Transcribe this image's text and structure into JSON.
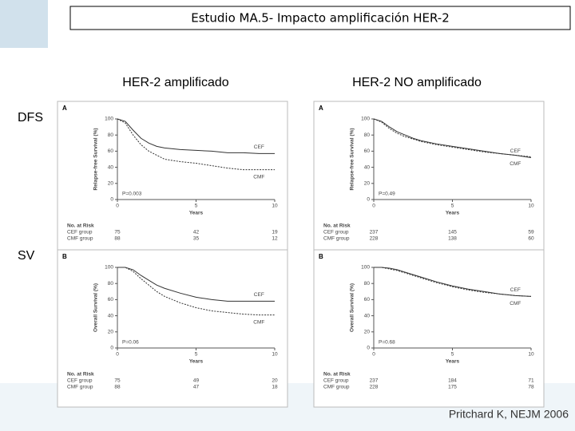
{
  "title": "Estudio MA.5- Impacto amplificación HER-2",
  "column_labels": [
    "HER-2 amplificado",
    "HER-2 NO amplificado"
  ],
  "row_labels": [
    "DFS",
    "SV"
  ],
  "citation": "Pritchard K, NEJM 2006",
  "chart_data": [
    {
      "type": "line",
      "panel": "A",
      "ylabel": "Relapse-free Survival (%)",
      "xlabel": "Years",
      "annotation": "P=0.003",
      "xlim": [
        0,
        10
      ],
      "ylim": [
        0,
        100
      ],
      "xticks": [
        0,
        5,
        10
      ],
      "yticks": [
        0,
        20,
        40,
        60,
        80,
        100
      ],
      "x": [
        0,
        0.5,
        1,
        1.5,
        2,
        2.5,
        3,
        4,
        5,
        6,
        7,
        8,
        9,
        10
      ],
      "series": [
        {
          "name": "CEF",
          "color": "#333333",
          "style": "solid",
          "values": [
            100,
            97,
            86,
            76,
            70,
            66,
            64,
            62,
            61,
            60,
            58,
            58,
            57,
            57
          ]
        },
        {
          "name": "CMF",
          "color": "#333333",
          "style": "dashed",
          "values": [
            100,
            95,
            80,
            68,
            60,
            55,
            50,
            47,
            45,
            42,
            39,
            37,
            37,
            37
          ]
        }
      ],
      "risk_table": {
        "title": "No. at Risk",
        "rows": [
          {
            "name": "CEF group",
            "values": [
              75,
              42,
              19
            ]
          },
          {
            "name": "CMF group",
            "values": [
              88,
              35,
              12
            ]
          }
        ]
      }
    },
    {
      "type": "line",
      "panel": "A",
      "ylabel": "Relapse-free Survival (%)",
      "xlabel": "Years",
      "annotation": "P=0.49",
      "xlim": [
        0,
        10
      ],
      "ylim": [
        0,
        100
      ],
      "xticks": [
        0,
        5,
        10
      ],
      "yticks": [
        0,
        20,
        40,
        60,
        80,
        100
      ],
      "x": [
        0,
        0.5,
        1,
        1.5,
        2,
        2.5,
        3,
        4,
        5,
        6,
        7,
        8,
        9,
        10
      ],
      "series": [
        {
          "name": "CEF",
          "color": "#333333",
          "style": "solid",
          "values": [
            100,
            97,
            90,
            84,
            80,
            76,
            73,
            69,
            66,
            63,
            60,
            57,
            55,
            52
          ]
        },
        {
          "name": "CMF",
          "color": "#333333",
          "style": "dashed",
          "values": [
            100,
            96,
            88,
            82,
            78,
            75,
            72,
            68,
            65,
            62,
            59,
            57,
            55,
            53
          ]
        }
      ],
      "risk_table": {
        "title": "No. at Risk",
        "rows": [
          {
            "name": "CEF group",
            "values": [
              237,
              145,
              59
            ]
          },
          {
            "name": "CMF group",
            "values": [
              228,
              138,
              60
            ]
          }
        ]
      }
    },
    {
      "type": "line",
      "panel": "B",
      "ylabel": "Overall Survival (%)",
      "xlabel": "Years",
      "annotation": "P=0.06",
      "xlim": [
        0,
        10
      ],
      "ylim": [
        0,
        100
      ],
      "xticks": [
        0,
        5,
        10
      ],
      "yticks": [
        0,
        20,
        40,
        60,
        80,
        100
      ],
      "x": [
        0,
        0.5,
        1,
        1.5,
        2,
        2.5,
        3,
        4,
        5,
        6,
        7,
        8,
        9,
        10
      ],
      "series": [
        {
          "name": "CEF",
          "color": "#333333",
          "style": "solid",
          "values": [
            100,
            100,
            97,
            90,
            84,
            78,
            74,
            68,
            63,
            60,
            58,
            58,
            58,
            58
          ]
        },
        {
          "name": "CMF",
          "color": "#333333",
          "style": "dashed",
          "values": [
            100,
            100,
            95,
            86,
            78,
            70,
            64,
            56,
            50,
            46,
            44,
            42,
            41,
            41
          ]
        }
      ],
      "risk_table": {
        "title": "No. at Risk",
        "rows": [
          {
            "name": "CEF group",
            "values": [
              75,
              49,
              20
            ]
          },
          {
            "name": "CMF group",
            "values": [
              88,
              47,
              18
            ]
          }
        ]
      }
    },
    {
      "type": "line",
      "panel": "B",
      "ylabel": "Overall Survival (%)",
      "xlabel": "Years",
      "annotation": "P=0.68",
      "xlim": [
        0,
        10
      ],
      "ylim": [
        0,
        100
      ],
      "xticks": [
        0,
        5,
        10
      ],
      "yticks": [
        0,
        20,
        40,
        60,
        80,
        100
      ],
      "x": [
        0,
        0.5,
        1,
        1.5,
        2,
        2.5,
        3,
        4,
        5,
        6,
        7,
        8,
        9,
        10
      ],
      "series": [
        {
          "name": "CEF",
          "color": "#333333",
          "style": "solid",
          "values": [
            100,
            100,
            99,
            97,
            94,
            91,
            88,
            82,
            77,
            73,
            70,
            67,
            65,
            64
          ]
        },
        {
          "name": "CMF",
          "color": "#333333",
          "style": "dashed",
          "values": [
            100,
            100,
            98,
            96,
            93,
            90,
            87,
            81,
            76,
            72,
            69,
            67,
            65,
            64
          ]
        }
      ],
      "risk_table": {
        "title": "No. at Risk",
        "rows": [
          {
            "name": "CEF group",
            "values": [
              237,
              184,
              71
            ]
          },
          {
            "name": "CMF group",
            "values": [
              228,
              175,
              78
            ]
          }
        ]
      }
    }
  ]
}
